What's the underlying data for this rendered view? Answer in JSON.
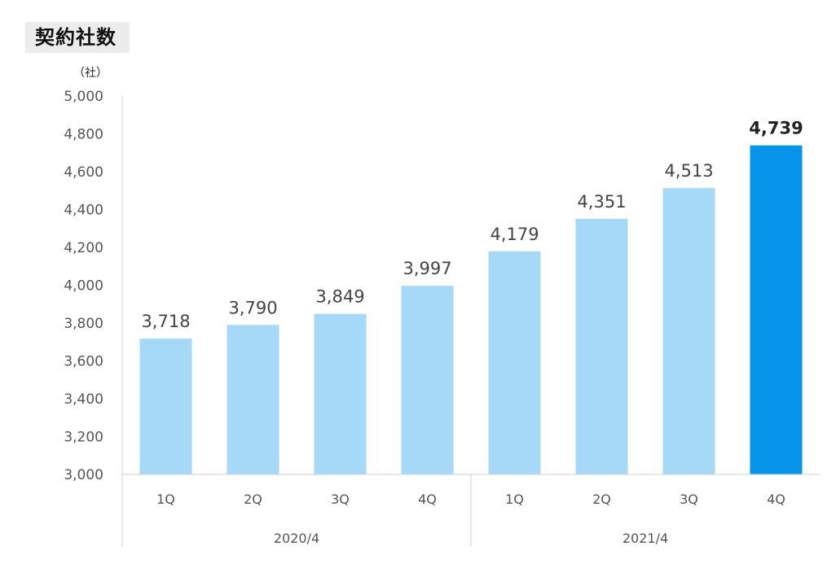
{
  "title": "契約社数",
  "chart_data": {
    "type": "bar",
    "title": "契約社数",
    "unit": "（社）",
    "categories": [
      "1Q",
      "2Q",
      "3Q",
      "4Q",
      "1Q",
      "2Q",
      "3Q",
      "4Q"
    ],
    "groups": [
      {
        "label": "2020/4",
        "categories": [
          "1Q",
          "2Q",
          "3Q",
          "4Q"
        ]
      },
      {
        "label": "2021/4",
        "categories": [
          "1Q",
          "2Q",
          "3Q",
          "4Q"
        ]
      }
    ],
    "values": [
      3718,
      3790,
      3849,
      3997,
      4179,
      4351,
      4513,
      4739
    ],
    "value_labels": [
      "3,718",
      "3,790",
      "3,849",
      "3,997",
      "4,179",
      "4,351",
      "4,513",
      "4,739"
    ],
    "highlight_index": 7,
    "ylim": [
      3000,
      5000
    ],
    "yticks": [
      "3,000",
      "3,200",
      "3,400",
      "3,600",
      "3,800",
      "4,000",
      "4,200",
      "4,400",
      "4,600",
      "4,800",
      "5,000"
    ],
    "xlabel": "",
    "ylabel": "",
    "grid": false,
    "colors": {
      "bar": "#a6d8f8",
      "highlight": "#0594ea"
    }
  }
}
